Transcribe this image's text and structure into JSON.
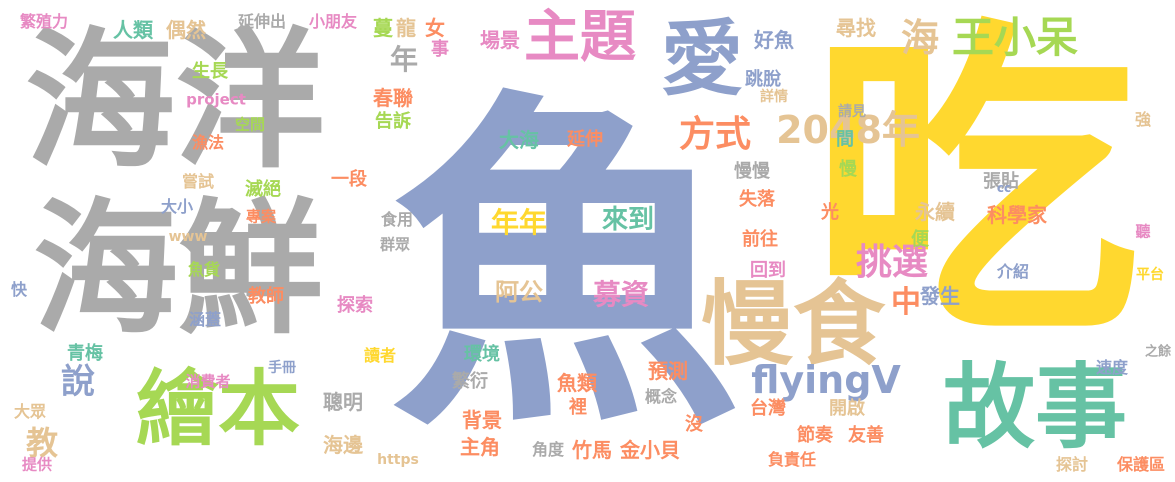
{
  "palette": {
    "gray": "#aaaaaa",
    "blue": "#8ea0cb",
    "yellow": "#ffd82f",
    "green": "#66c2a4",
    "pink": "#e78ac3",
    "lime": "#a6d854",
    "tan": "#e5c494",
    "orange": "#fc8d62",
    "background": "#ffffff"
  },
  "words": [
    {
      "text": "魚",
      "color": "#8ea0cb"
    },
    {
      "text": "吃",
      "color": "#ffd82f"
    },
    {
      "text": "海洋",
      "color": "#aaaaaa"
    },
    {
      "text": "海鮮",
      "color": "#aaaaaa"
    },
    {
      "text": "故事",
      "color": "#66c2a4"
    },
    {
      "text": "繪本",
      "color": "#a6d854"
    },
    {
      "text": "主題",
      "color": "#e78ac3"
    },
    {
      "text": "愛",
      "color": "#8ea0cb"
    },
    {
      "text": "慢食",
      "color": "#e5c494"
    },
    {
      "text": "王小呆",
      "color": "#a6d854"
    },
    {
      "text": "2048年",
      "color": "#e5c494"
    },
    {
      "text": "方式",
      "color": "#fc8d62"
    },
    {
      "text": "挑選",
      "color": "#e78ac3"
    },
    {
      "text": "flyingV",
      "color": "#8ea0cb"
    },
    {
      "text": "海",
      "color": "#e5c494"
    },
    {
      "text": "年",
      "color": "#aaaaaa"
    },
    {
      "text": "教",
      "color": "#e5c494"
    },
    {
      "text": "說",
      "color": "#8ea0cb"
    },
    {
      "text": "中",
      "color": "#fc8d62"
    },
    {
      "text": "年年",
      "color": "#ffd82f"
    },
    {
      "text": "來到",
      "color": "#66c2a4"
    },
    {
      "text": "募資",
      "color": "#e78ac3"
    },
    {
      "text": "阿公",
      "color": "#e5c494"
    },
    {
      "text": "大海",
      "color": "#66c2a4"
    },
    {
      "text": "延伸",
      "color": "#fc8d62"
    },
    {
      "text": "場景",
      "color": "#e78ac3"
    },
    {
      "text": "春聯",
      "color": "#fc8d62"
    },
    {
      "text": "告訴",
      "color": "#a6d854"
    },
    {
      "text": "人類",
      "color": "#66c2a4"
    },
    {
      "text": "偶然",
      "color": "#e5c494"
    },
    {
      "text": "延伸出",
      "color": "#aaaaaa"
    },
    {
      "text": "小朋友",
      "color": "#e78ac3"
    },
    {
      "text": "繁殖力",
      "color": "#e78ac3"
    },
    {
      "text": "生長",
      "color": "#a6d854"
    },
    {
      "text": "project",
      "color": "#e78ac3"
    },
    {
      "text": "空間",
      "color": "#a6d854"
    },
    {
      "text": "漁法",
      "color": "#fc8d62"
    },
    {
      "text": "嘗試",
      "color": "#e5c494"
    },
    {
      "text": "滅絕",
      "color": "#a6d854"
    },
    {
      "text": "一段",
      "color": "#fc8d62"
    },
    {
      "text": "大小",
      "color": "#8ea0cb"
    },
    {
      "text": "專案",
      "color": "#fc8d62"
    },
    {
      "text": "www",
      "color": "#e5c494"
    },
    {
      "text": "食用",
      "color": "#aaaaaa"
    },
    {
      "text": "群眾",
      "color": "#aaaaaa"
    },
    {
      "text": "魚貨",
      "color": "#a6d854"
    },
    {
      "text": "快",
      "color": "#8ea0cb"
    },
    {
      "text": "涵蓋",
      "color": "#8ea0cb"
    },
    {
      "text": "教師",
      "color": "#fc8d62"
    },
    {
      "text": "探索",
      "color": "#e78ac3"
    },
    {
      "text": "青梅",
      "color": "#66c2a4"
    },
    {
      "text": "讀者",
      "color": "#ffd82f"
    },
    {
      "text": "消費者",
      "color": "#e78ac3"
    },
    {
      "text": "手冊",
      "color": "#8ea0cb"
    },
    {
      "text": "大眾",
      "color": "#e5c494"
    },
    {
      "text": "提供",
      "color": "#e78ac3"
    },
    {
      "text": "聰明",
      "color": "#aaaaaa"
    },
    {
      "text": "海邊",
      "color": "#e5c494"
    },
    {
      "text": "https",
      "color": "#e5c494"
    },
    {
      "text": "蔓",
      "color": "#a6d854"
    },
    {
      "text": "龍",
      "color": "#e5c494"
    },
    {
      "text": "女",
      "color": "#fc8d62"
    },
    {
      "text": "事",
      "color": "#e78ac3"
    },
    {
      "text": "環境",
      "color": "#66c2a4"
    },
    {
      "text": "繁衍",
      "color": "#aaaaaa"
    },
    {
      "text": "背景",
      "color": "#fc8d62"
    },
    {
      "text": "主角",
      "color": "#fc8d62"
    },
    {
      "text": "魚類",
      "color": "#fc8d62"
    },
    {
      "text": "預測",
      "color": "#fc8d62"
    },
    {
      "text": "裡",
      "color": "#fc8d62"
    },
    {
      "text": "概念",
      "color": "#aaaaaa"
    },
    {
      "text": "角度",
      "color": "#aaaaaa"
    },
    {
      "text": "竹馬",
      "color": "#fc8d62"
    },
    {
      "text": "金小貝",
      "color": "#fc8d62"
    },
    {
      "text": "沒",
      "color": "#fc8d62"
    },
    {
      "text": "好魚",
      "color": "#8ea0cb"
    },
    {
      "text": "尋找",
      "color": "#e5c494"
    },
    {
      "text": "跳脫",
      "color": "#8ea0cb"
    },
    {
      "text": "詳情",
      "color": "#e5c494"
    },
    {
      "text": "慢慢",
      "color": "#aaaaaa"
    },
    {
      "text": "間",
      "color": "#66c2a4"
    },
    {
      "text": "慢",
      "color": "#a6d854"
    },
    {
      "text": "失落",
      "color": "#fc8d62"
    },
    {
      "text": "光",
      "color": "#fc8d62"
    },
    {
      "text": "前往",
      "color": "#fc8d62"
    },
    {
      "text": "回到",
      "color": "#e78ac3"
    },
    {
      "text": "永續",
      "color": "#e5c494"
    },
    {
      "text": "便",
      "color": "#a6d854"
    },
    {
      "text": "台灣",
      "color": "#fc8d62"
    },
    {
      "text": "開啟",
      "color": "#e5c494"
    },
    {
      "text": "節奏",
      "color": "#fc8d62"
    },
    {
      "text": "友善",
      "color": "#fc8d62"
    },
    {
      "text": "負責任",
      "color": "#fc8d62"
    },
    {
      "text": "發生",
      "color": "#8ea0cb"
    },
    {
      "text": "介紹",
      "color": "#8ea0cb"
    },
    {
      "text": "科學家",
      "color": "#fc8d62"
    },
    {
      "text": "張貼",
      "color": "#aaaaaa"
    },
    {
      "text": "請見",
      "color": "#aaaaaa"
    },
    {
      "text": "強",
      "color": "#e5c494"
    },
    {
      "text": "cc",
      "color": "#8ea0cb"
    },
    {
      "text": "聽",
      "color": "#e78ac3"
    },
    {
      "text": "平台",
      "color": "#ffd82f"
    },
    {
      "text": "速度",
      "color": "#8ea0cb"
    },
    {
      "text": "之餘",
      "color": "#aaaaaa"
    },
    {
      "text": "探討",
      "color": "#e5c494"
    },
    {
      "text": "保護區",
      "color": "#fc8d62"
    }
  ]
}
